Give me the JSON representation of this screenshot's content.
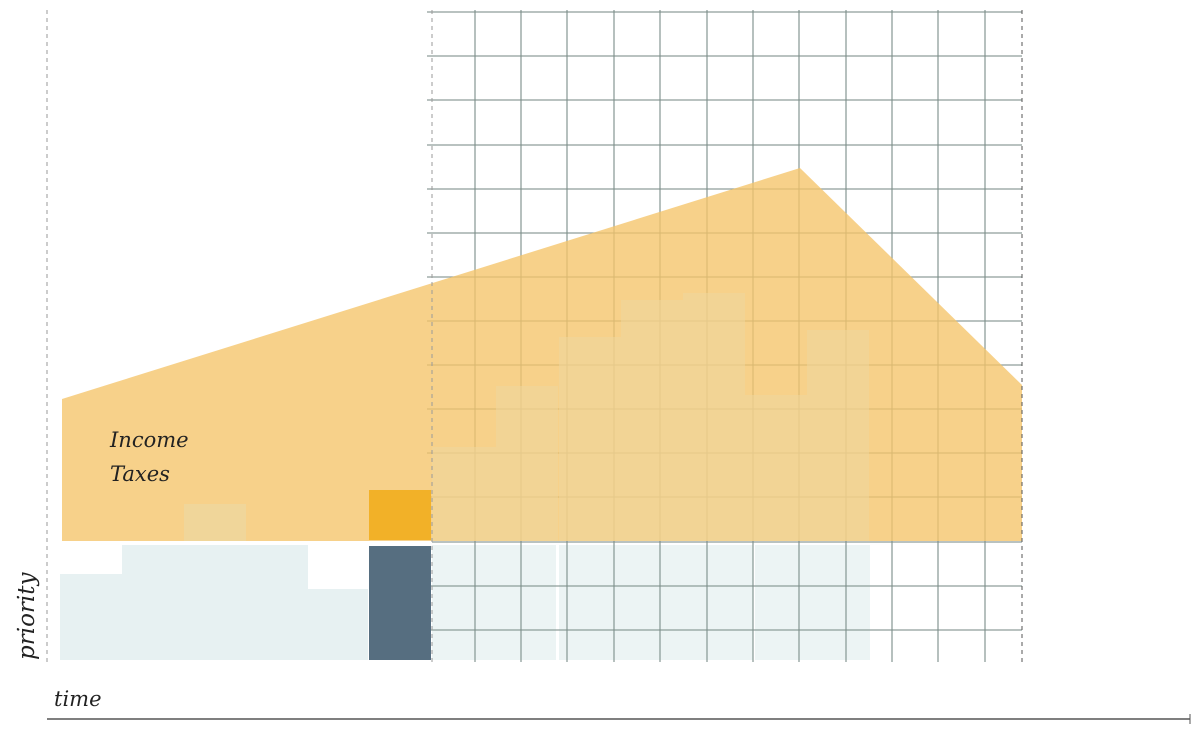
{
  "labels": {
    "y_axis": "priority",
    "x_axis": "time",
    "income_taxes_line1": "Income",
    "income_taxes_line2": "Taxes"
  },
  "colors": {
    "income_fill": "#f5c469",
    "blue_fill": "#dfeced",
    "beige_fill": "#eed79e",
    "orange_block": "#f2b128",
    "slate_block": "#566e80",
    "grid_line": "#7c8e8a",
    "dashed_line": "#9a9a9a",
    "axis_line": "#555555"
  }
}
